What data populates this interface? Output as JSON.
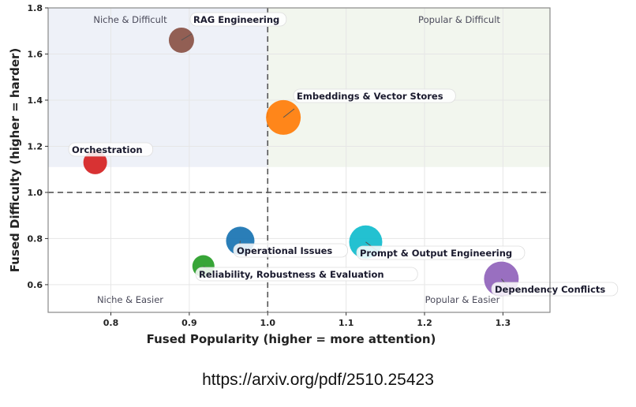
{
  "chart_data": {
    "type": "scatter",
    "xlabel": "Fused Popularity (higher = more attention)",
    "ylabel": "Fused Difficulty (higher = harder)",
    "xlim": [
      0.72,
      1.36
    ],
    "ylim": [
      0.48,
      1.8
    ],
    "x_ticks": [
      "0.8",
      "0.9",
      "1.0",
      "1.1",
      "1.2",
      "1.3"
    ],
    "y_ticks": [
      "0.6",
      "0.8",
      "1.0",
      "1.2",
      "1.4",
      "1.6",
      "1.8"
    ],
    "x_tick_values": [
      0.8,
      0.9,
      1.0,
      1.1,
      1.2,
      1.3
    ],
    "y_tick_values": [
      0.6,
      0.8,
      1.0,
      1.2,
      1.4,
      1.6,
      1.8
    ],
    "reference_lines": {
      "x": 1.0,
      "y": 1.0
    },
    "quadrants": [
      {
        "label": "Niche & Difficult",
        "position": "top-left",
        "shade": "#eef1f8"
      },
      {
        "label": "Popular & Difficult",
        "position": "top-right",
        "shade": "#f2f6ee"
      },
      {
        "label": "Niche & Easier",
        "position": "bottom-left",
        "shade": "#ffffff"
      },
      {
        "label": "Popular & Easier",
        "position": "bottom-right",
        "shade": "#ffffff"
      }
    ],
    "points": [
      {
        "name": "RAG Engineering",
        "x": 0.89,
        "y": 1.66,
        "size": 16,
        "color": "#8c564b",
        "label_side": "upper-right"
      },
      {
        "name": "Embeddings & Vector Stores",
        "x": 1.02,
        "y": 1.325,
        "size": 22,
        "color": "#ff7f0e",
        "label_side": "upper-right"
      },
      {
        "name": "Orchestration",
        "x": 0.78,
        "y": 1.13,
        "size": 15,
        "color": "#d62728",
        "label_side": "above"
      },
      {
        "name": "Operational Issues",
        "x": 0.965,
        "y": 0.79,
        "size": 18,
        "color": "#1f77b4",
        "label_side": "lower-right"
      },
      {
        "name": "Prompt & Output Engineering",
        "x": 1.125,
        "y": 0.785,
        "size": 21,
        "color": "#17becf",
        "label_side": "lower-right"
      },
      {
        "name": "Reliability, Robustness & Evaluation",
        "x": 0.918,
        "y": 0.68,
        "size": 14,
        "color": "#2ca02c",
        "label_side": "lower-right"
      },
      {
        "name": "Dependency Conflicts",
        "x": 1.298,
        "y": 0.625,
        "size": 22,
        "color": "#9467bd",
        "label_side": "lower-right"
      }
    ]
  },
  "caption": "https://arxiv.org/pdf/2510.25423"
}
